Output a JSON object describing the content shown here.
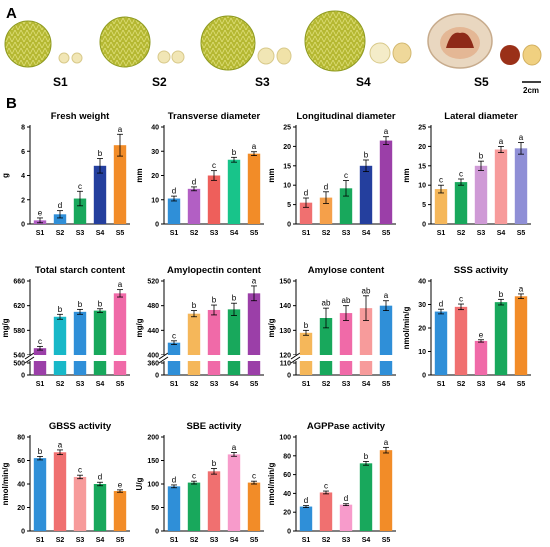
{
  "panel_a": {
    "letter": "A",
    "stages": [
      "S1",
      "S2",
      "S3",
      "S4",
      "S5"
    ],
    "scale_label": "2cm"
  },
  "panel_b": {
    "letter": "B"
  },
  "chart_data": [
    {
      "type": "bar",
      "title": "Fresh weight",
      "ylabel": "g",
      "categories": [
        "S1",
        "S2",
        "S3",
        "S4",
        "S5"
      ],
      "values": [
        0.3,
        0.8,
        2.1,
        4.8,
        6.5
      ],
      "errors": [
        0.2,
        0.3,
        0.6,
        0.6,
        0.9
      ],
      "letters": [
        "e",
        "d",
        "c",
        "b",
        "a"
      ],
      "ylim": [
        0,
        8
      ],
      "yticks": [
        0,
        2,
        4,
        6,
        8
      ],
      "colors": [
        "#b25fc4",
        "#2f8fd8",
        "#18a85c",
        "#243f9e",
        "#f28c28"
      ]
    },
    {
      "type": "bar",
      "title": "Transverse diameter",
      "ylabel": "mm",
      "categories": [
        "S1",
        "S2",
        "S3",
        "S4",
        "S5"
      ],
      "values": [
        10.5,
        14.5,
        20,
        26.5,
        29
      ],
      "errors": [
        1,
        0.8,
        2,
        1,
        0.8
      ],
      "letters": [
        "d",
        "d",
        "c",
        "b",
        "a"
      ],
      "ylim": [
        0,
        40
      ],
      "yticks": [
        0,
        10,
        20,
        30,
        40
      ],
      "colors": [
        "#2f8fd8",
        "#b25fc4",
        "#ee5f5b",
        "#18c48a",
        "#f28c28"
      ]
    },
    {
      "type": "bar",
      "title": "Longitudinal diameter",
      "ylabel": "mm",
      "categories": [
        "S1",
        "S2",
        "S3",
        "S4",
        "S5"
      ],
      "values": [
        5.5,
        6.8,
        9.2,
        15,
        21.5
      ],
      "errors": [
        1.2,
        1.5,
        2,
        1.5,
        1
      ],
      "letters": [
        "d",
        "d",
        "c",
        "b",
        "a"
      ],
      "ylim": [
        0,
        25
      ],
      "yticks": [
        0,
        5,
        10,
        15,
        20,
        25
      ],
      "colors": [
        "#f07070",
        "#f5a04a",
        "#18a85c",
        "#243f9e",
        "#9b3fa8"
      ]
    },
    {
      "type": "bar",
      "title": "Lateral diameter",
      "ylabel": "mm",
      "categories": [
        "S1",
        "S2",
        "S3",
        "S4",
        "S5"
      ],
      "values": [
        9,
        10.8,
        15,
        19.2,
        19.5
      ],
      "errors": [
        1,
        0.8,
        1.2,
        0.8,
        1.5
      ],
      "letters": [
        "c",
        "c",
        "b",
        "a",
        "a"
      ],
      "ylim": [
        0,
        25
      ],
      "yticks": [
        0,
        5,
        10,
        15,
        20,
        25
      ],
      "colors": [
        "#f5b75a",
        "#18a85c",
        "#cf9ad6",
        "#f79b9b",
        "#8f8fd6"
      ]
    },
    {
      "type": "bar",
      "title": "Total starch content",
      "ylabel": "mg/g",
      "categories": [
        "S1",
        "S2",
        "S3",
        "S4",
        "S5"
      ],
      "values": [
        551,
        602,
        610,
        612,
        640
      ],
      "errors": [
        3,
        4,
        4,
        3,
        6
      ],
      "letters": [
        "c",
        "b",
        "b",
        "b",
        "a"
      ],
      "ylim": [
        540,
        660
      ],
      "yticks": [
        540,
        580,
        620,
        660
      ],
      "axis_break": true,
      "break_low_ticks": [
        0,
        500
      ],
      "colors": [
        "#9b3fa8",
        "#18b8c8",
        "#2f8fd8",
        "#18a85c",
        "#f06aa8"
      ]
    },
    {
      "type": "bar",
      "title": "Amylopectin content",
      "ylabel": "mg/g",
      "categories": [
        "S1",
        "S2",
        "S3",
        "S4",
        "S5"
      ],
      "values": [
        420,
        467,
        473,
        474,
        500
      ],
      "errors": [
        3,
        5,
        8,
        10,
        12
      ],
      "letters": [
        "c",
        "b",
        "b",
        "b",
        "a"
      ],
      "ylim": [
        400,
        520
      ],
      "yticks": [
        400,
        440,
        480,
        520
      ],
      "axis_break": true,
      "break_low_ticks": [
        0,
        360
      ],
      "colors": [
        "#2f8fd8",
        "#f5b75a",
        "#f06aa8",
        "#18a85c",
        "#9b3fa8"
      ]
    },
    {
      "type": "bar",
      "title": "Amylose content",
      "ylabel": "mg/g",
      "categories": [
        "S1",
        "S2",
        "S3",
        "S4",
        "S5"
      ],
      "values": [
        129,
        135,
        137,
        139,
        140
      ],
      "errors": [
        1,
        4,
        3,
        5,
        2
      ],
      "letters": [
        "b",
        "ab",
        "ab",
        "ab",
        "a"
      ],
      "ylim": [
        120,
        150
      ],
      "yticks": [
        120,
        130,
        140,
        150
      ],
      "axis_break": true,
      "break_low_ticks": [
        0,
        110
      ],
      "colors": [
        "#f5b75a",
        "#18a85c",
        "#f06aa8",
        "#f79b9b",
        "#2f8fd8"
      ]
    },
    {
      "type": "bar",
      "title": "SSS activity",
      "ylabel": "nmol/min/g",
      "categories": [
        "S1",
        "S2",
        "S3",
        "S4",
        "S5"
      ],
      "values": [
        27,
        29,
        14.5,
        31,
        33.5
      ],
      "errors": [
        1,
        1.2,
        0.5,
        1.2,
        1
      ],
      "letters": [
        "d",
        "c",
        "e",
        "b",
        "a"
      ],
      "ylim": [
        0,
        40
      ],
      "yticks": [
        0,
        10,
        20,
        30,
        40
      ],
      "colors": [
        "#2f8fd8",
        "#f07070",
        "#f06aa8",
        "#18a85c",
        "#f28c28"
      ]
    },
    {
      "type": "bar",
      "title": "GBSS activity",
      "ylabel": "nmol/min/g",
      "categories": [
        "S1",
        "S2",
        "S3",
        "S4",
        "S5"
      ],
      "values": [
        62,
        67,
        46,
        40,
        34
      ],
      "errors": [
        1.5,
        2,
        1.5,
        1.5,
        1
      ],
      "letters": [
        "b",
        "a",
        "c",
        "d",
        "e"
      ],
      "ylim": [
        0,
        80
      ],
      "yticks": [
        0,
        20,
        40,
        60,
        80
      ],
      "colors": [
        "#2f8fd8",
        "#f07070",
        "#f79b9b",
        "#18a85c",
        "#f28c28"
      ]
    },
    {
      "type": "bar",
      "title": "SBE activity",
      "ylabel": "U/g",
      "categories": [
        "S1",
        "S2",
        "S3",
        "S4",
        "S5"
      ],
      "values": [
        95,
        103,
        127,
        163,
        103
      ],
      "errors": [
        3,
        3,
        6,
        4,
        3
      ],
      "letters": [
        "d",
        "c",
        "b",
        "a",
        "c"
      ],
      "ylim": [
        0,
        200
      ],
      "yticks": [
        0,
        50,
        100,
        150,
        200
      ],
      "colors": [
        "#2f8fd8",
        "#18a85c",
        "#f07070",
        "#f79bcb",
        "#f28c28"
      ]
    },
    {
      "type": "bar",
      "title": "AGPPase activity",
      "ylabel": "nmol/min/g",
      "categories": [
        "S1",
        "S2",
        "S3",
        "S4",
        "S5"
      ],
      "values": [
        26,
        41,
        28,
        72,
        86
      ],
      "errors": [
        1,
        1.5,
        1,
        2,
        3
      ],
      "letters": [
        "d",
        "c",
        "d",
        "b",
        "a"
      ],
      "ylim": [
        0,
        100
      ],
      "yticks": [
        0,
        20,
        40,
        60,
        80,
        100
      ],
      "colors": [
        "#2f8fd8",
        "#f07070",
        "#f79bcb",
        "#18a85c",
        "#f28c28"
      ]
    }
  ]
}
